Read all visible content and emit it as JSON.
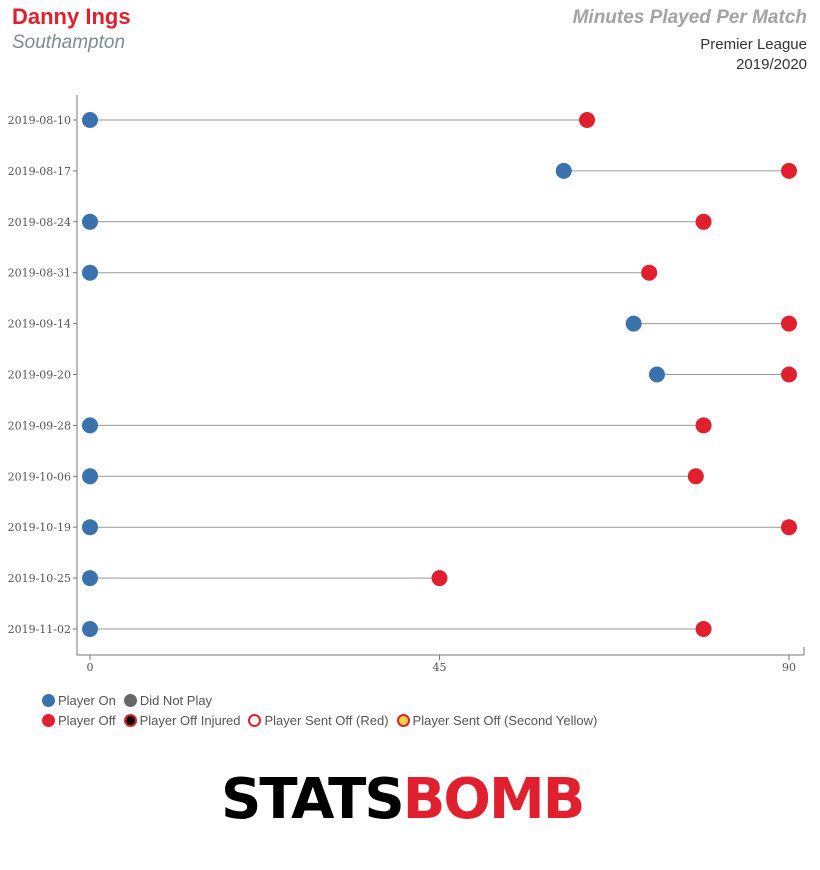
{
  "header": {
    "player": "Danny Ings",
    "team": "Southampton",
    "title": "Minutes Played Per Match",
    "competition": "Premier League",
    "season": "2019/2020"
  },
  "colors": {
    "player_on": "#3a72ad",
    "player_off": "#e0202e",
    "did_not_play": "#666666",
    "line": "#999999"
  },
  "chart_data": {
    "type": "scatter",
    "orientation": "horizontal-dumbbell",
    "categories": [
      "2019-08-10",
      "2019-08-17",
      "2019-08-24",
      "2019-08-31",
      "2019-09-14",
      "2019-09-20",
      "2019-09-28",
      "2019-10-06",
      "2019-10-19",
      "2019-10-25",
      "2019-11-02"
    ],
    "series": [
      {
        "name": "Player On",
        "values": [
          0,
          61,
          0,
          0,
          70,
          73,
          0,
          0,
          0,
          0,
          0
        ]
      },
      {
        "name": "Player Off",
        "values": [
          64,
          90,
          79,
          72,
          90,
          90,
          79,
          78,
          90,
          45,
          79
        ]
      }
    ],
    "x_ticks": [
      "0",
      "45",
      "90"
    ],
    "xlim": [
      0,
      90
    ],
    "legend_position": "bottom-left"
  },
  "legend": [
    [
      "Player On",
      "Did Not Play"
    ],
    [
      "Player Off",
      "Player Off Injured",
      "Player Sent Off (Red)",
      "Player Sent Off (Second Yellow)"
    ]
  ],
  "logo": {
    "part1": "STATS",
    "part2": "BOMB"
  }
}
